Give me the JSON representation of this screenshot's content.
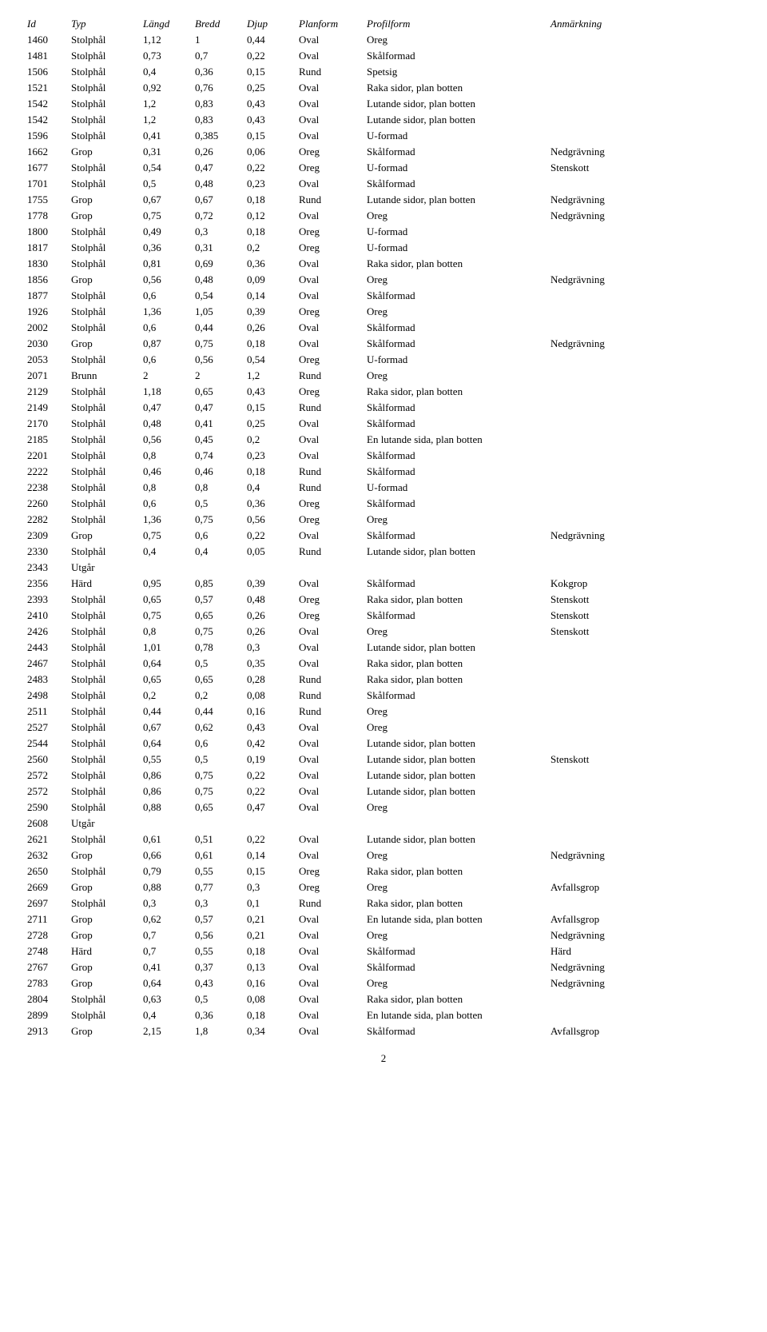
{
  "columns": [
    "Id",
    "Typ",
    "Längd",
    "Bredd",
    "Djup",
    "Planform",
    "Profilform",
    "Anmärkning"
  ],
  "rows": [
    [
      "1460",
      "Stolphål",
      "1,12",
      "1",
      "0,44",
      "Oval",
      "Oreg",
      ""
    ],
    [
      "1481",
      "Stolphål",
      "0,73",
      "0,7",
      "0,22",
      "Oval",
      "Skålformad",
      ""
    ],
    [
      "1506",
      "Stolphål",
      "0,4",
      "0,36",
      "0,15",
      "Rund",
      "Spetsig",
      ""
    ],
    [
      "1521",
      "Stolphål",
      "0,92",
      "0,76",
      "0,25",
      "Oval",
      "Raka sidor, plan botten",
      ""
    ],
    [
      "1542",
      "Stolphål",
      "1,2",
      "0,83",
      "0,43",
      "Oval",
      "Lutande sidor, plan botten",
      ""
    ],
    [
      "1542",
      "Stolphål",
      "1,2",
      "0,83",
      "0,43",
      "Oval",
      "Lutande sidor, plan botten",
      ""
    ],
    [
      "1596",
      "Stolphål",
      "0,41",
      "0,385",
      "0,15",
      "Oval",
      "U-formad",
      ""
    ],
    [
      "1662",
      "Grop",
      "0,31",
      "0,26",
      "0,06",
      "Oreg",
      "Skålformad",
      "Nedgrävning"
    ],
    [
      "1677",
      "Stolphål",
      "0,54",
      "0,47",
      "0,22",
      "Oreg",
      "U-formad",
      "Stenskott"
    ],
    [
      "1701",
      "Stolphål",
      "0,5",
      "0,48",
      "0,23",
      "Oval",
      "Skålformad",
      ""
    ],
    [
      "1755",
      "Grop",
      "0,67",
      "0,67",
      "0,18",
      "Rund",
      "Lutande sidor, plan botten",
      "Nedgrävning"
    ],
    [
      "1778",
      "Grop",
      "0,75",
      "0,72",
      "0,12",
      "Oval",
      "Oreg",
      "Nedgrävning"
    ],
    [
      "1800",
      "Stolphål",
      "0,49",
      "0,3",
      "0,18",
      "Oreg",
      "U-formad",
      ""
    ],
    [
      "1817",
      "Stolphål",
      "0,36",
      "0,31",
      "0,2",
      "Oreg",
      "U-formad",
      ""
    ],
    [
      "1830",
      "Stolphål",
      "0,81",
      "0,69",
      "0,36",
      "Oval",
      "Raka sidor, plan botten",
      ""
    ],
    [
      "1856",
      "Grop",
      "0,56",
      "0,48",
      "0,09",
      "Oval",
      "Oreg",
      "Nedgrävning"
    ],
    [
      "1877",
      "Stolphål",
      "0,6",
      "0,54",
      "0,14",
      "Oval",
      "Skålformad",
      ""
    ],
    [
      "1926",
      "Stolphål",
      "1,36",
      "1,05",
      "0,39",
      "Oreg",
      "Oreg",
      ""
    ],
    [
      "2002",
      "Stolphål",
      "0,6",
      "0,44",
      "0,26",
      "Oval",
      "Skålformad",
      ""
    ],
    [
      "2030",
      "Grop",
      "0,87",
      "0,75",
      "0,18",
      "Oval",
      "Skålformad",
      "Nedgrävning"
    ],
    [
      "2053",
      "Stolphål",
      "0,6",
      "0,56",
      "0,54",
      "Oreg",
      "U-formad",
      ""
    ],
    [
      "2071",
      "Brunn",
      "2",
      "2",
      "1,2",
      "Rund",
      "Oreg",
      ""
    ],
    [
      "2129",
      "Stolphål",
      "1,18",
      "0,65",
      "0,43",
      "Oreg",
      "Raka sidor, plan botten",
      ""
    ],
    [
      "2149",
      "Stolphål",
      "0,47",
      "0,47",
      "0,15",
      "Rund",
      "Skålformad",
      ""
    ],
    [
      "2170",
      "Stolphål",
      "0,48",
      "0,41",
      "0,25",
      "Oval",
      "Skålformad",
      ""
    ],
    [
      "2185",
      "Stolphål",
      "0,56",
      "0,45",
      "0,2",
      "Oval",
      "En lutande sida, plan botten",
      ""
    ],
    [
      "2201",
      "Stolphål",
      "0,8",
      "0,74",
      "0,23",
      "Oval",
      "Skålformad",
      ""
    ],
    [
      "2222",
      "Stolphål",
      "0,46",
      "0,46",
      "0,18",
      "Rund",
      "Skålformad",
      ""
    ],
    [
      "2238",
      "Stolphål",
      "0,8",
      "0,8",
      "0,4",
      "Rund",
      "U-formad",
      ""
    ],
    [
      "2260",
      "Stolphål",
      "0,6",
      "0,5",
      "0,36",
      "Oreg",
      "Skålformad",
      ""
    ],
    [
      "2282",
      "Stolphål",
      "1,36",
      "0,75",
      "0,56",
      "Oreg",
      "Oreg",
      ""
    ],
    [
      "2309",
      "Grop",
      "0,75",
      "0,6",
      "0,22",
      "Oval",
      "Skålformad",
      "Nedgrävning"
    ],
    [
      "2330",
      "Stolphål",
      "0,4",
      "0,4",
      "0,05",
      "Rund",
      "Lutande sidor, plan botten",
      ""
    ],
    [
      "2343",
      "Utgår",
      "",
      "",
      "",
      "",
      "",
      ""
    ],
    [
      "2356",
      "Härd",
      "0,95",
      "0,85",
      "0,39",
      "Oval",
      "Skålformad",
      "Kokgrop"
    ],
    [
      "2393",
      "Stolphål",
      "0,65",
      "0,57",
      "0,48",
      "Oreg",
      "Raka sidor, plan botten",
      "Stenskott"
    ],
    [
      "2410",
      "Stolphål",
      "0,75",
      "0,65",
      "0,26",
      "Oreg",
      "Skålformad",
      "Stenskott"
    ],
    [
      "2426",
      "Stolphål",
      "0,8",
      "0,75",
      "0,26",
      "Oval",
      "Oreg",
      "Stenskott"
    ],
    [
      "2443",
      "Stolphål",
      "1,01",
      "0,78",
      "0,3",
      "Oval",
      "Lutande sidor, plan botten",
      ""
    ],
    [
      "2467",
      "Stolphål",
      "0,64",
      "0,5",
      "0,35",
      "Oval",
      "Raka sidor, plan botten",
      ""
    ],
    [
      "2483",
      "Stolphål",
      "0,65",
      "0,65",
      "0,28",
      "Rund",
      "Raka sidor, plan botten",
      ""
    ],
    [
      "2498",
      "Stolphål",
      "0,2",
      "0,2",
      "0,08",
      "Rund",
      "Skålformad",
      ""
    ],
    [
      "2511",
      "Stolphål",
      "0,44",
      "0,44",
      "0,16",
      "Rund",
      "Oreg",
      ""
    ],
    [
      "2527",
      "Stolphål",
      "0,67",
      "0,62",
      "0,43",
      "Oval",
      "Oreg",
      ""
    ],
    [
      "2544",
      "Stolphål",
      "0,64",
      "0,6",
      "0,42",
      "Oval",
      "Lutande sidor, plan botten",
      ""
    ],
    [
      "2560",
      "Stolphål",
      "0,55",
      "0,5",
      "0,19",
      "Oval",
      "Lutande sidor, plan botten",
      "Stenskott"
    ],
    [
      "2572",
      "Stolphål",
      "0,86",
      "0,75",
      "0,22",
      "Oval",
      "Lutande sidor, plan botten",
      ""
    ],
    [
      "2572",
      "Stolphål",
      "0,86",
      "0,75",
      "0,22",
      "Oval",
      "Lutande sidor, plan botten",
      ""
    ],
    [
      "2590",
      "Stolphål",
      "0,88",
      "0,65",
      "0,47",
      "Oval",
      "Oreg",
      ""
    ],
    [
      "2608",
      "Utgår",
      "",
      "",
      "",
      "",
      "",
      ""
    ],
    [
      "2621",
      "Stolphål",
      "0,61",
      "0,51",
      "0,22",
      "Oval",
      "Lutande sidor, plan botten",
      ""
    ],
    [
      "2632",
      "Grop",
      "0,66",
      "0,61",
      "0,14",
      "Oval",
      "Oreg",
      "Nedgrävning"
    ],
    [
      "2650",
      "Stolphål",
      "0,79",
      "0,55",
      "0,15",
      "Oreg",
      "Raka sidor, plan botten",
      ""
    ],
    [
      "2669",
      "Grop",
      "0,88",
      "0,77",
      "0,3",
      "Oreg",
      "Oreg",
      "Avfallsgrop"
    ],
    [
      "2697",
      "Stolphål",
      "0,3",
      "0,3",
      "0,1",
      "Rund",
      "Raka sidor, plan botten",
      ""
    ],
    [
      "2711",
      "Grop",
      "0,62",
      "0,57",
      "0,21",
      "Oval",
      "En lutande sida, plan botten",
      "Avfallsgrop"
    ],
    [
      "2728",
      "Grop",
      "0,7",
      "0,56",
      "0,21",
      "Oval",
      "Oreg",
      "Nedgrävning"
    ],
    [
      "2748",
      "Härd",
      "0,7",
      "0,55",
      "0,18",
      "Oval",
      "Skålformad",
      "Härd"
    ],
    [
      "2767",
      "Grop",
      "0,41",
      "0,37",
      "0,13",
      "Oval",
      "Skålformad",
      "Nedgrävning"
    ],
    [
      "2783",
      "Grop",
      "0,64",
      "0,43",
      "0,16",
      "Oval",
      "Oreg",
      "Nedgrävning"
    ],
    [
      "2804",
      "Stolphål",
      "0,63",
      "0,5",
      "0,08",
      "Oval",
      "Raka sidor, plan botten",
      ""
    ],
    [
      "2899",
      "Stolphål",
      "0,4",
      "0,36",
      "0,18",
      "Oval",
      "En lutande sida, plan botten",
      ""
    ],
    [
      "2913",
      "Grop",
      "2,15",
      "1,8",
      "0,34",
      "Oval",
      "Skålformad",
      "Avfallsgrop"
    ]
  ],
  "page_number": "2"
}
